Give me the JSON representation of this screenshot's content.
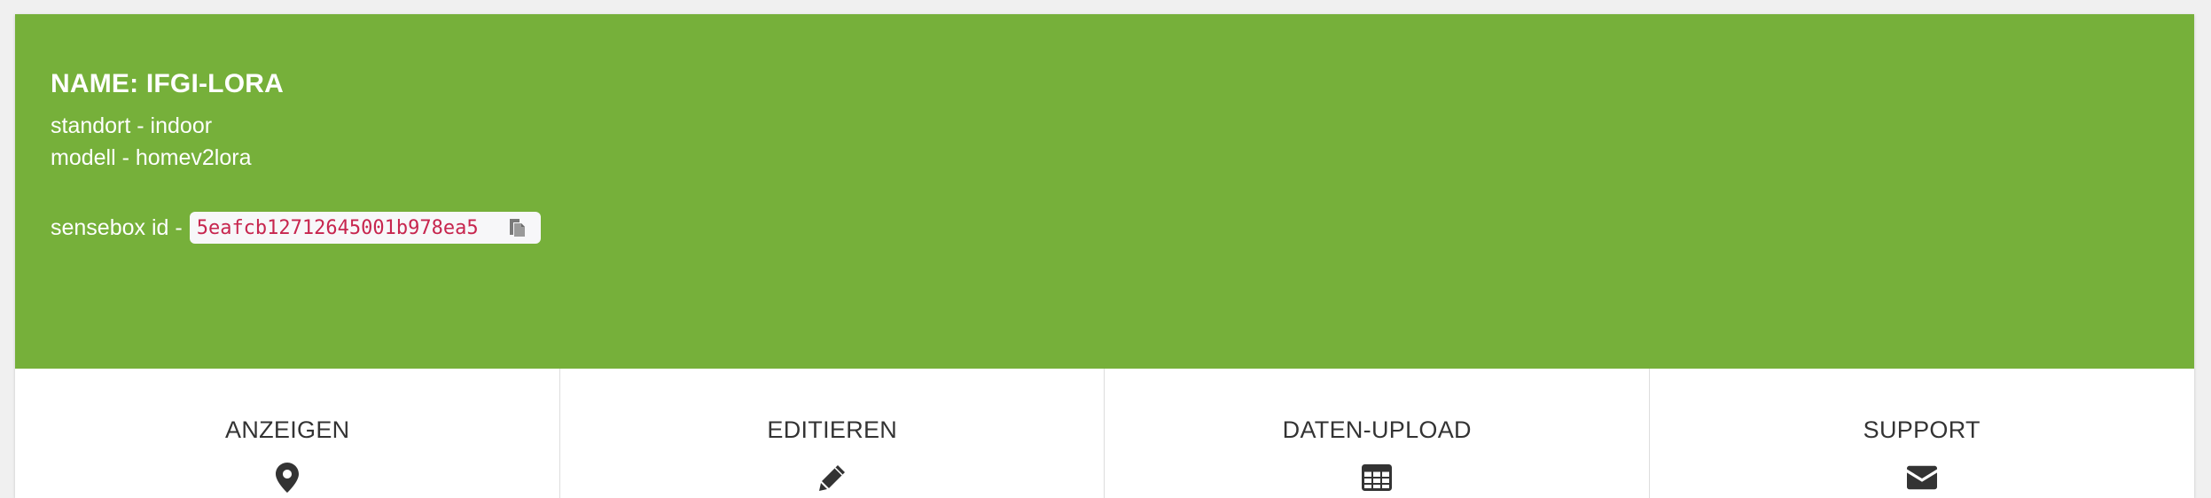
{
  "box": {
    "name": "NAME: IFGI-LORA",
    "standort": "standort - indoor",
    "modell": "modell - homev2lora",
    "id_label": "sensebox id -",
    "id_value": "5eafcb12712645001b978ea5"
  },
  "colors": {
    "header_bg": "#76b03a",
    "id_text": "#c7254e",
    "nav_text": "#333333"
  },
  "nav": {
    "items": [
      {
        "label": "ANZEIGEN",
        "icon": "map-marker-icon"
      },
      {
        "label": "EDITIEREN",
        "icon": "pencil-icon"
      },
      {
        "label": "DATEN-UPLOAD",
        "icon": "table-icon"
      },
      {
        "label": "SUPPORT",
        "icon": "envelope-icon"
      }
    ]
  }
}
